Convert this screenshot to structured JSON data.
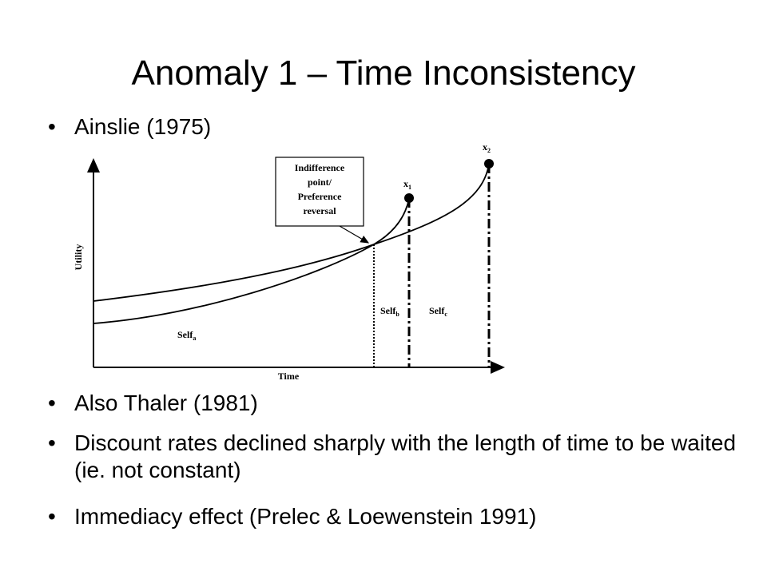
{
  "title": "Anomaly 1 – Time Inconsistency",
  "bullets": [
    "Ainslie (1975)",
    "Also Thaler (1981)",
    "Discount rates declined sharply with the length of time to be waited (ie. not constant)",
    "Immediacy effect (Prelec & Loewenstein 1991)"
  ],
  "diagram": {
    "box_lines": [
      "Indifference",
      "point/",
      "Preference",
      "reversal"
    ],
    "x_axis": "Time",
    "y_axis": "Utility",
    "x1": {
      "base": "x",
      "sub": "1"
    },
    "x2": {
      "base": "x",
      "sub": "2"
    },
    "self_a": {
      "base": "Self",
      "sub": "a"
    },
    "self_b": {
      "base": "Self",
      "sub": "b"
    },
    "self_c": {
      "base": "Self",
      "sub": "c"
    }
  }
}
